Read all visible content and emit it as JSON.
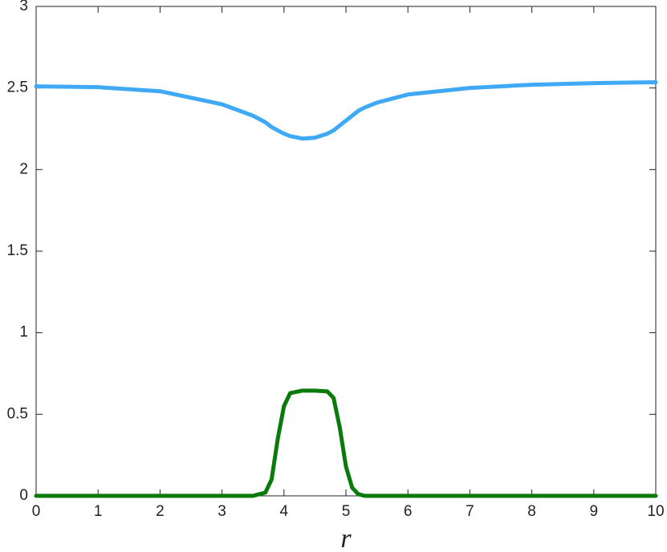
{
  "chart_data": {
    "type": "line",
    "x_label": "r",
    "x": [
      0,
      1,
      2,
      3,
      3.5,
      3.7,
      3.8,
      3.9,
      4,
      4.1,
      4.3,
      4.5,
      4.7,
      4.8,
      4.9,
      5,
      5.1,
      5.2,
      5.3,
      5.5,
      6,
      7,
      8,
      9,
      10
    ],
    "series": [
      {
        "color": "#3fa9f5",
        "values": [
          2.51,
          2.505,
          2.48,
          2.4,
          2.33,
          2.29,
          2.26,
          2.24,
          2.22,
          2.205,
          2.19,
          2.195,
          2.22,
          2.24,
          2.27,
          2.3,
          2.33,
          2.36,
          2.38,
          2.41,
          2.46,
          2.5,
          2.52,
          2.53,
          2.535
        ]
      },
      {
        "color": "#0a7a0a",
        "values": [
          0,
          0,
          0,
          0,
          0,
          0.02,
          0.1,
          0.35,
          0.55,
          0.63,
          0.645,
          0.645,
          0.64,
          0.6,
          0.42,
          0.18,
          0.05,
          0.01,
          0,
          0,
          0,
          0,
          0,
          0,
          0
        ]
      }
    ],
    "xlim": [
      0,
      10
    ],
    "xticks": [
      0,
      1,
      2,
      3,
      4,
      5,
      6,
      7,
      8,
      9,
      10
    ],
    "ylim": [
      0,
      3
    ],
    "yticks": [
      0,
      0.5,
      1,
      1.5,
      2,
      2.5,
      3
    ]
  }
}
